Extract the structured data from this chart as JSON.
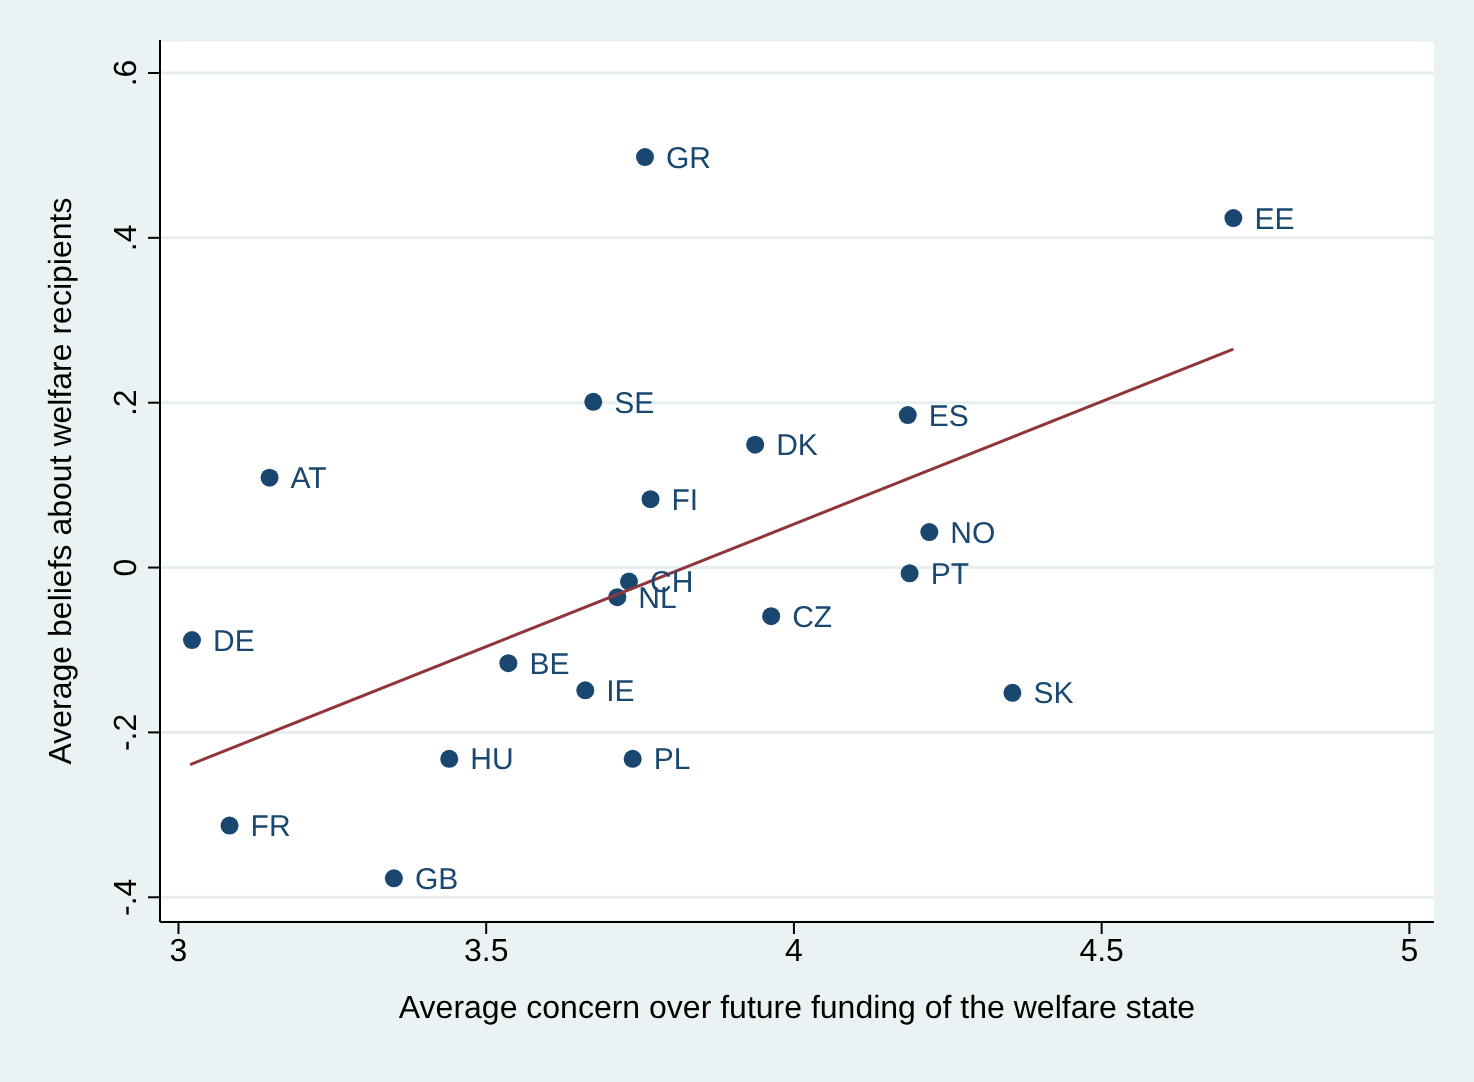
{
  "chart_data": {
    "type": "scatter",
    "xlabel": "Average concern over future funding of the welfare state",
    "ylabel": "Average beliefs about welfare recipients",
    "xlim": [
      2.97,
      5.04
    ],
    "xticks": [
      3,
      3.5,
      4,
      4.5,
      5
    ],
    "ylim": [
      -0.43,
      0.64
    ],
    "yticks": [
      {
        "value": -0.4,
        "label": "-.4"
      },
      {
        "value": -0.2,
        "label": "-.2"
      },
      0,
      {
        "value": 0.2,
        "label": ".2"
      },
      {
        "value": 0.4,
        "label": ".4"
      },
      {
        "value": 0.6,
        "label": ".6"
      }
    ],
    "grid": "y",
    "legend": false,
    "series": [
      {
        "marker": "circle",
        "color": "#1a476f",
        "x": [
          3.758,
          4.714,
          3.674,
          4.185,
          3.937,
          3.148,
          3.767,
          4.22,
          4.188,
          3.732,
          3.713,
          3.963,
          3.022,
          3.536,
          3.661,
          4.355,
          3.44,
          3.738,
          3.083,
          3.35
        ],
        "values": [
          0.498,
          0.424,
          0.201,
          0.185,
          0.149,
          0.109,
          0.083,
          0.043,
          -0.007,
          -0.017,
          -0.036,
          -0.059,
          -0.088,
          -0.116,
          -0.149,
          -0.152,
          -0.232,
          -0.232,
          -0.313,
          -0.377
        ],
        "value_labels": [
          "GR",
          "EE",
          "SE",
          "ES",
          "DK",
          "AT",
          "FI",
          "NO",
          "PT",
          "CH",
          "NL",
          "CZ",
          "DE",
          "BE",
          "IE",
          "SK",
          "HU",
          "PL",
          "FR",
          "GB"
        ]
      },
      {
        "type": "line",
        "color": "#90353b",
        "x": [
          3.019,
          4.714
        ],
        "values": [
          -0.239,
          0.265
        ]
      }
    ]
  }
}
